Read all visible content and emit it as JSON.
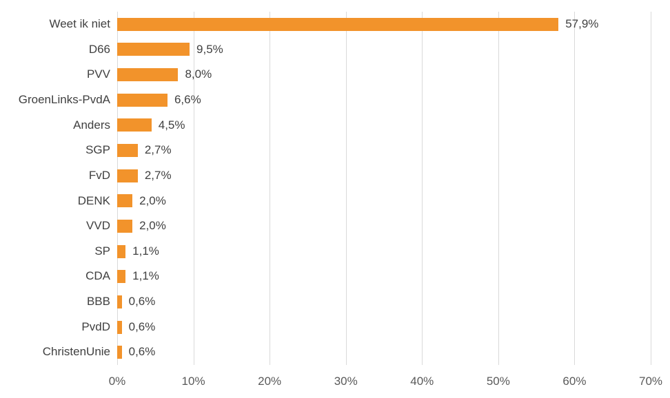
{
  "chart_data": {
    "type": "bar",
    "orientation": "horizontal",
    "categories": [
      "Weet ik niet",
      "D66",
      "PVV",
      "GroenLinks-PvdA",
      "Anders",
      "SGP",
      "FvD",
      "DENK",
      "VVD",
      "SP",
      "CDA",
      "BBB",
      "PvdD",
      "ChristenUnie"
    ],
    "values": [
      57.9,
      9.5,
      8.0,
      6.6,
      4.5,
      2.7,
      2.7,
      2.0,
      2.0,
      1.1,
      1.1,
      0.6,
      0.6,
      0.6
    ],
    "value_labels": [
      "57,9%",
      "9,5%",
      "8,0%",
      "6,6%",
      "4,5%",
      "2,7%",
      "2,7%",
      "2,0%",
      "2,0%",
      "1,1%",
      "1,1%",
      "0,6%",
      "0,6%",
      "0,6%"
    ],
    "x_ticks": [
      "0%",
      "10%",
      "20%",
      "30%",
      "40%",
      "50%",
      "60%",
      "70%"
    ],
    "xlim": [
      0,
      70
    ],
    "grid": "vertical-gridlines",
    "legend": "none"
  },
  "style": {
    "bar_color": "#F2932B",
    "category_label_color": "#404040",
    "value_label_color": "#404040",
    "tick_label_color": "#595959",
    "gridline_color": "#D9D9D9",
    "background_color": "#FFFFFF"
  }
}
